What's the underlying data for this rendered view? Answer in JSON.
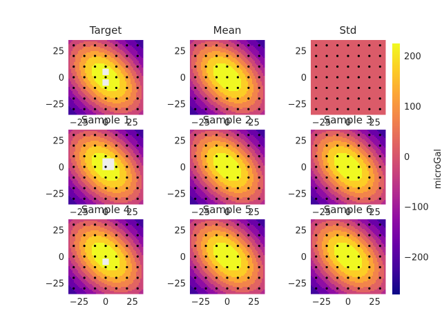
{
  "chart_data": {
    "type": "heatmap",
    "colormap": "plasma",
    "grid": false,
    "panels": [
      {
        "title": "Target",
        "mode": "field",
        "gaps": [
          {
            "x": 0,
            "y": 5
          },
          {
            "x": 0,
            "y": -5
          }
        ]
      },
      {
        "title": "Mean",
        "mode": "field",
        "gaps": []
      },
      {
        "title": "Std",
        "mode": "flat",
        "gaps": []
      },
      {
        "title": "Sample 1",
        "mode": "field",
        "gaps": [
          {
            "x": 0,
            "y": 0
          },
          {
            "x": 0,
            "y": 5
          },
          {
            "x": 5,
            "y": 5
          },
          {
            "x": 5,
            "y": 0
          }
        ]
      },
      {
        "title": "Sample 2",
        "mode": "field",
        "gaps": []
      },
      {
        "title": "Sample 3",
        "mode": "field",
        "gaps": []
      },
      {
        "title": "Sample 4",
        "mode": "field",
        "gaps": [
          {
            "x": 0,
            "y": -5
          }
        ]
      },
      {
        "title": "Sample 5",
        "mode": "field",
        "gaps": []
      },
      {
        "title": "Sample 6",
        "mode": "field",
        "gaps": []
      }
    ],
    "x_ticks": [
      -25,
      0,
      25
    ],
    "y_ticks": [
      25,
      0,
      -25
    ],
    "xlim": [
      -35,
      35
    ],
    "ylim": [
      -35,
      35
    ],
    "station_spacing": 10,
    "levels": [
      -250,
      -200,
      -150,
      -100,
      -50,
      0,
      50,
      100,
      150,
      200
    ],
    "field": {
      "peak": 250,
      "sxx": 0.0007,
      "syy": 0.0007,
      "sxy": 0.00062
    },
    "std_value": 10,
    "colorbar": {
      "label": "microGal",
      "range": [
        -275,
        225
      ],
      "ticks": [
        200,
        100,
        0,
        -100,
        -200
      ]
    }
  }
}
